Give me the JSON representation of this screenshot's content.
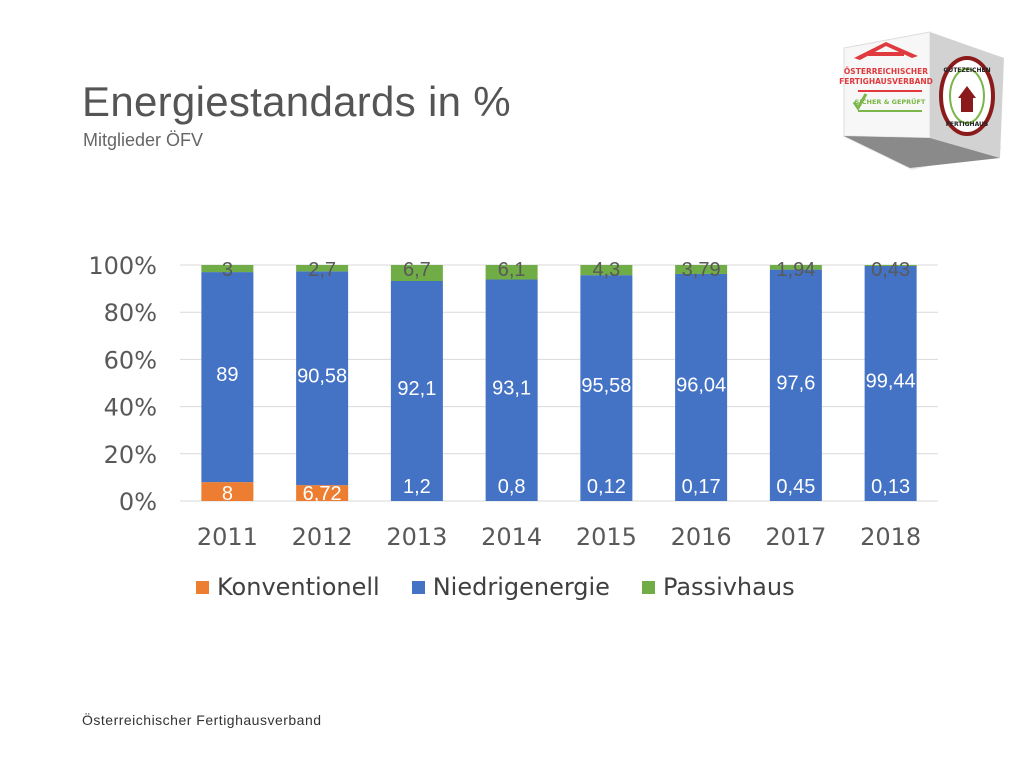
{
  "title": "Energiestandards in %",
  "subtitle": "Mitglieder ÖFV",
  "footer": "Österreichischer Fertighausverband",
  "logo": {
    "text_lines": [
      "ÖSTERREICHISCHER",
      "FERTIGHAUSVERBAND",
      "SICHER & GEPRÜFT",
      "GÜTEZEICHEN",
      "FERTIGHAUS"
    ],
    "colors": {
      "red": "#e03a3e",
      "green": "#7ab648",
      "dark_red": "#8b1a1a"
    }
  },
  "chart_data": {
    "type": "bar",
    "stacked": "percent",
    "categories": [
      "2011",
      "2012",
      "2013",
      "2014",
      "2015",
      "2016",
      "2017",
      "2018"
    ],
    "series": [
      {
        "name": "Konventionell",
        "color": "#ed7d31",
        "values": [
          8,
          6.72,
          0,
          0,
          0,
          0,
          0,
          0
        ]
      },
      {
        "name": "Niedrigenergie",
        "color": "#4472c4",
        "values": [
          89,
          90.58,
          92.1,
          93.1,
          95.58,
          96.04,
          97.6,
          99.44
        ]
      },
      {
        "name": "Passivhaus",
        "color": "#70ad47",
        "values": [
          3,
          2.7,
          6.7,
          6.1,
          4.3,
          3.79,
          1.94,
          0.43
        ]
      }
    ],
    "data_labels": {
      "Konventionell": [
        "8",
        "6,72",
        "",
        "",
        "",
        "",
        "",
        ""
      ],
      "Niedrigenergie": [
        "89",
        "90,58",
        "92,1",
        "93,1",
        "95,58",
        "96,04",
        "97,6",
        "99,44"
      ],
      "Passivhaus": [
        "3",
        "2,7",
        "6,7",
        "6,1",
        "4,3",
        "3,79",
        "1,94",
        "0,43"
      ],
      "bottom_extra": [
        "",
        "",
        "1,2",
        "0,8",
        "0,12",
        "0,17",
        "0,45",
        "0,13"
      ]
    },
    "yticks": [
      "0%",
      "20%",
      "40%",
      "60%",
      "80%",
      "100%"
    ],
    "ylim": [
      0,
      100
    ],
    "grid": true,
    "legend_position": "bottom"
  }
}
